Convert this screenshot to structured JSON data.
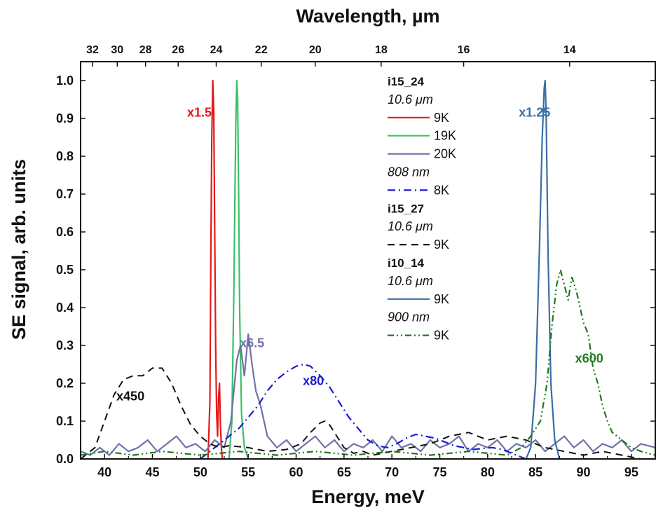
{
  "chart_data": {
    "type": "line",
    "title": "",
    "xlabel": "Energy, meV",
    "ylabel": "SE signal, arb. units",
    "x2label": "Wavelength, µm",
    "xlim": [
      37.5,
      97.5
    ],
    "ylim": [
      0,
      1.05
    ],
    "grid": false,
    "legend_position": "top-right",
    "x_ticks": [
      40,
      45,
      50,
      55,
      60,
      65,
      70,
      75,
      80,
      85,
      90,
      95
    ],
    "y_ticks": [
      "0.0",
      "0.1",
      "0.2",
      "0.3",
      "0.4",
      "0.5",
      "0.6",
      "0.7",
      "0.8",
      "0.9",
      "1.0"
    ],
    "x2_ticks": [
      "32",
      "30",
      "28",
      "26",
      "24",
      "22",
      "20",
      "18",
      "16",
      "14"
    ],
    "x2_tick_values": [
      32,
      30,
      28,
      26,
      24,
      22,
      20,
      18,
      16,
      14
    ],
    "legend": [
      {
        "text": "i15_24",
        "kind": "header"
      },
      {
        "text": "10.6 μm",
        "kind": "sub"
      },
      {
        "text": "9K",
        "kind": "entry",
        "series": "s1"
      },
      {
        "text": "19K",
        "kind": "entry",
        "series": "s2"
      },
      {
        "text": "20K",
        "kind": "entry",
        "series": "s3"
      },
      {
        "text": "808 nm",
        "kind": "sub"
      },
      {
        "text": "8K",
        "kind": "entry",
        "series": "s4"
      },
      {
        "text": "i15_27",
        "kind": "header"
      },
      {
        "text": "10.6 μm",
        "kind": "sub"
      },
      {
        "text": "9K",
        "kind": "entry",
        "series": "s5"
      },
      {
        "text": "i10_14",
        "kind": "header"
      },
      {
        "text": "10.6 μm",
        "kind": "sub"
      },
      {
        "text": "9K",
        "kind": "entry",
        "series": "s6"
      },
      {
        "text": "900 nm",
        "kind": "sub"
      },
      {
        "text": "9K",
        "kind": "entry",
        "series": "s7"
      }
    ],
    "annotations": [
      {
        "text": "x1.5",
        "x": 49.9,
        "y": 0.905,
        "color": "#e41a1c"
      },
      {
        "text": "x6.5",
        "x": 55.4,
        "y": 0.295,
        "color": "#6f73a6"
      },
      {
        "text": "x80",
        "x": 61.8,
        "y": 0.195,
        "color": "#1a1ad6"
      },
      {
        "text": "x450",
        "x": 42.7,
        "y": 0.155,
        "color": "#111111"
      },
      {
        "text": "x1.25",
        "x": 84.9,
        "y": 0.905,
        "color": "#3a6ea5"
      },
      {
        "text": "x600",
        "x": 90.6,
        "y": 0.255,
        "color": "#1d7a1d"
      }
    ],
    "series": [
      {
        "id": "s1",
        "color": "#e41a1c",
        "dash": "solid",
        "width": 2.2,
        "x": [
          50.8,
          51.0,
          51.1,
          51.2,
          51.3,
          51.4,
          51.5,
          51.6,
          51.7,
          51.8,
          51.9,
          52.0,
          52.1,
          52.2,
          52.3
        ],
        "y": [
          0.0,
          0.15,
          0.55,
          0.85,
          1.0,
          0.92,
          0.62,
          0.3,
          0.12,
          0.06,
          0.16,
          0.2,
          0.09,
          0.03,
          0.0
        ]
      },
      {
        "id": "s2",
        "color": "#3cc06a",
        "dash": "solid",
        "width": 2.2,
        "x": [
          53.0,
          53.3,
          53.5,
          53.7,
          53.8,
          53.9,
          54.0,
          54.1,
          54.3,
          54.6,
          55.0
        ],
        "y": [
          0.0,
          0.1,
          0.45,
          0.88,
          1.0,
          0.95,
          0.7,
          0.4,
          0.12,
          0.03,
          0.0
        ]
      },
      {
        "id": "s3",
        "color": "#6f73a6",
        "dash": "solid",
        "width": 2.2,
        "x": [
          37.5,
          38.5,
          39.5,
          40.5,
          41.5,
          42.5,
          43.5,
          44.5,
          45.5,
          46.5,
          47.5,
          48.5,
          49.5,
          50.5,
          51.5,
          52.5,
          53.2,
          53.8,
          54.2,
          54.6,
          55.0,
          55.4,
          55.8,
          56.3,
          57.0,
          58.0,
          59.0,
          60.0,
          61.0,
          62.0,
          63.0,
          64.0,
          65.0,
          66.0,
          67.0,
          68.0,
          69.0,
          70.0,
          71.0,
          72.0,
          73.0,
          74.0,
          75.0,
          76.0,
          77.0,
          78.0,
          79.0,
          80.0,
          81.0,
          82.0,
          83.0,
          84.0,
          85.0,
          86.0,
          87.0,
          88.0,
          89.0,
          90.0,
          91.0,
          92.0,
          93.0,
          94.0,
          95.0,
          96.0,
          97.5
        ],
        "y": [
          0.02,
          0.01,
          0.03,
          0.01,
          0.04,
          0.02,
          0.03,
          0.05,
          0.02,
          0.04,
          0.06,
          0.03,
          0.04,
          0.02,
          0.05,
          0.03,
          0.1,
          0.26,
          0.3,
          0.22,
          0.33,
          0.25,
          0.18,
          0.14,
          0.06,
          0.03,
          0.05,
          0.02,
          0.04,
          0.06,
          0.03,
          0.05,
          0.02,
          0.04,
          0.03,
          0.05,
          0.02,
          0.06,
          0.03,
          0.04,
          0.02,
          0.05,
          0.03,
          0.04,
          0.06,
          0.02,
          0.04,
          0.03,
          0.05,
          0.02,
          0.04,
          0.03,
          0.05,
          0.02,
          0.04,
          0.06,
          0.03,
          0.05,
          0.02,
          0.04,
          0.03,
          0.05,
          0.02,
          0.04,
          0.03
        ]
      },
      {
        "id": "s4",
        "color": "#1a1ad6",
        "dash": "dashdot",
        "width": 2.2,
        "x": [
          50.0,
          51.0,
          52.0,
          53.0,
          54.0,
          55.0,
          56.0,
          57.0,
          58.0,
          59.0,
          60.0,
          60.8,
          61.5,
          62.5,
          63.5,
          64.5,
          65.5,
          66.5,
          67.5,
          68.5,
          69.5,
          70.5,
          71.5,
          72.5,
          73.5,
          74.5,
          75.5,
          76.5,
          77.5,
          78.5,
          79.5,
          80.5,
          81.5,
          82.5,
          84.0
        ],
        "y": [
          0.0,
          0.02,
          0.04,
          0.06,
          0.08,
          0.11,
          0.14,
          0.18,
          0.21,
          0.23,
          0.245,
          0.25,
          0.245,
          0.22,
          0.19,
          0.15,
          0.11,
          0.08,
          0.05,
          0.035,
          0.03,
          0.04,
          0.055,
          0.065,
          0.06,
          0.055,
          0.045,
          0.035,
          0.03,
          0.025,
          0.028,
          0.03,
          0.025,
          0.015,
          0.0
        ]
      },
      {
        "id": "s5",
        "color": "#111111",
        "dash": "dashed",
        "width": 2.0,
        "x": [
          37.5,
          39.0,
          40.0,
          41.0,
          42.0,
          43.0,
          44.0,
          45.0,
          46.0,
          47.0,
          48.0,
          49.0,
          50.0,
          51.0,
          52.0,
          53.0,
          55.0,
          57.0,
          59.0,
          60.5,
          61.5,
          62.5,
          63.0,
          63.5,
          64.0,
          65.0,
          66.0,
          67.0,
          68.0,
          70.0,
          72.0,
          74.0,
          76.0,
          78.0,
          80.0,
          82.0,
          84.0,
          86.0,
          88.0,
          90.0,
          92.0,
          94.0,
          96.0,
          97.5
        ],
        "y": [
          0.0,
          0.03,
          0.1,
          0.17,
          0.21,
          0.22,
          0.22,
          0.24,
          0.24,
          0.2,
          0.14,
          0.09,
          0.06,
          0.04,
          0.03,
          0.035,
          0.03,
          0.02,
          0.025,
          0.04,
          0.07,
          0.095,
          0.1,
          0.09,
          0.07,
          0.03,
          0.015,
          0.02,
          0.01,
          0.02,
          0.03,
          0.04,
          0.06,
          0.07,
          0.05,
          0.06,
          0.05,
          0.03,
          0.02,
          0.01,
          0.02,
          0.01,
          0.0,
          0.0
        ]
      },
      {
        "id": "s6",
        "color": "#3a6ea5",
        "dash": "solid",
        "width": 2.2,
        "x": [
          84.0,
          84.5,
          85.0,
          85.4,
          85.7,
          85.9,
          86.0,
          86.1,
          86.3,
          86.6,
          87.0,
          87.5
        ],
        "y": [
          0.0,
          0.03,
          0.2,
          0.55,
          0.85,
          0.98,
          1.0,
          0.92,
          0.55,
          0.2,
          0.05,
          0.0
        ]
      },
      {
        "id": "s7",
        "color": "#1d7a1d",
        "dash": "dashdotdot",
        "width": 2.2,
        "x": [
          37.5,
          40.0,
          43.0,
          46.0,
          50.0,
          54.0,
          58.0,
          62.0,
          66.0,
          70.0,
          74.0,
          78.0,
          82.0,
          83.5,
          84.5,
          85.5,
          86.2,
          86.7,
          87.2,
          87.6,
          88.0,
          88.4,
          88.8,
          89.3,
          90.0,
          90.5,
          91.0,
          91.5,
          92.0,
          92.5,
          93.0,
          94.0,
          95.0,
          96.0,
          97.5
        ],
        "y": [
          0.01,
          0.02,
          0.01,
          0.02,
          0.01,
          0.02,
          0.01,
          0.02,
          0.01,
          0.02,
          0.01,
          0.02,
          0.01,
          0.03,
          0.06,
          0.1,
          0.2,
          0.35,
          0.46,
          0.5,
          0.46,
          0.42,
          0.48,
          0.44,
          0.36,
          0.33,
          0.24,
          0.2,
          0.14,
          0.1,
          0.07,
          0.05,
          0.03,
          0.02,
          0.01
        ]
      }
    ]
  }
}
